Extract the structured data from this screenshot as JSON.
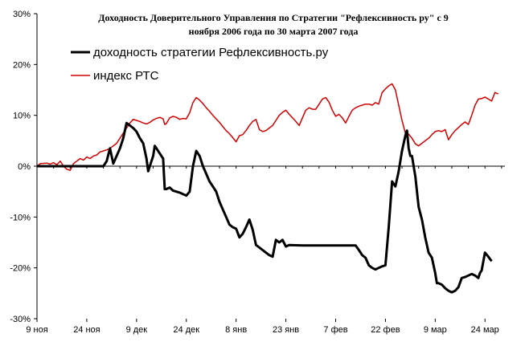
{
  "chart_data": {
    "type": "line",
    "title_line1": "Доходность Доверительного Управления по Стратегии \"Рефлексивность ру\" с 9",
    "title_line2": "ноября 2006 года по 30 марта 2007 года",
    "xlabel": "",
    "ylabel": "",
    "ylim": [
      -30,
      30
    ],
    "y_ticks": [
      30,
      20,
      10,
      0,
      -10,
      -20,
      -30
    ],
    "y_tick_labels": [
      "30%",
      "20%",
      "10%",
      "0%",
      "-10%",
      "-20%",
      "-30%"
    ],
    "x_ticks": [
      {
        "day": 0,
        "label": "9 ноя"
      },
      {
        "day": 15,
        "label": "24 ноя"
      },
      {
        "day": 30,
        "label": "9 дек"
      },
      {
        "day": 45,
        "label": "24 дек"
      },
      {
        "day": 60,
        "label": "8 янв"
      },
      {
        "day": 75,
        "label": "23 янв"
      },
      {
        "day": 90,
        "label": "7 фев"
      },
      {
        "day": 105,
        "label": "22 фев"
      },
      {
        "day": 120,
        "label": "9 мар"
      },
      {
        "day": 135,
        "label": "24 мар"
      }
    ],
    "x_max_day": 141,
    "grid": false,
    "legend_position": "top-left",
    "series": [
      {
        "name": "доходность стратегии Рефлексивность.ру",
        "color": "#000000",
        "points": [
          [
            0,
            0
          ],
          [
            20,
            0
          ],
          [
            21,
            1
          ],
          [
            22,
            3.5
          ],
          [
            23,
            0.5
          ],
          [
            25,
            3.5
          ],
          [
            26,
            5.5
          ],
          [
            27,
            8.5
          ],
          [
            28,
            8
          ],
          [
            29,
            7.5
          ],
          [
            30,
            6.8
          ],
          [
            31,
            5.5
          ],
          [
            32,
            4.5
          ],
          [
            33,
            1.5
          ],
          [
            33.5,
            -1
          ],
          [
            34,
            0
          ],
          [
            35,
            2
          ],
          [
            35.5,
            4
          ],
          [
            36,
            3.5
          ],
          [
            37,
            2.5
          ],
          [
            38,
            1.5
          ],
          [
            38.5,
            -4.5
          ],
          [
            39,
            -4.5
          ],
          [
            40,
            -4.2
          ],
          [
            41,
            -4.8
          ],
          [
            43,
            -5.2
          ],
          [
            44,
            -5.5
          ],
          [
            45,
            -5.8
          ],
          [
            46,
            -5
          ],
          [
            47,
            0
          ],
          [
            48,
            3
          ],
          [
            49,
            2
          ],
          [
            50,
            0
          ],
          [
            52,
            -3
          ],
          [
            53,
            -4
          ],
          [
            54,
            -5
          ],
          [
            55,
            -7
          ],
          [
            56,
            -8.5
          ],
          [
            57,
            -10
          ],
          [
            58,
            -11.5
          ],
          [
            59,
            -12
          ],
          [
            60,
            -12.3
          ],
          [
            61,
            -14
          ],
          [
            62,
            -13.3
          ],
          [
            63,
            -12
          ],
          [
            64,
            -10.5
          ],
          [
            65,
            -12.5
          ],
          [
            66,
            -15.5
          ],
          [
            67,
            -16
          ],
          [
            68,
            -16.5
          ],
          [
            69,
            -17
          ],
          [
            70,
            -17.5
          ],
          [
            71,
            -17.8
          ],
          [
            72,
            -14.5
          ],
          [
            73,
            -15
          ],
          [
            74,
            -14.5
          ],
          [
            75,
            -15.8
          ],
          [
            76,
            -15.5
          ],
          [
            80,
            -15.6
          ],
          [
            90,
            -15.6
          ],
          [
            96,
            -15.6
          ],
          [
            97,
            -16.5
          ],
          [
            98,
            -17.5
          ],
          [
            99,
            -18
          ],
          [
            100,
            -19.5
          ],
          [
            101,
            -20
          ],
          [
            102,
            -20.3
          ],
          [
            103,
            -20
          ],
          [
            104,
            -19.7
          ],
          [
            105,
            -19.5
          ],
          [
            106,
            -12
          ],
          [
            107,
            -3
          ],
          [
            108,
            -4
          ],
          [
            109,
            -1
          ],
          [
            110,
            3
          ],
          [
            111,
            6
          ],
          [
            111.5,
            7
          ],
          [
            112,
            3.5
          ],
          [
            112.5,
            2
          ],
          [
            113,
            2
          ],
          [
            114,
            -2
          ],
          [
            115,
            -8
          ],
          [
            116,
            -10.5
          ],
          [
            117,
            -14
          ],
          [
            118,
            -17
          ],
          [
            119,
            -18
          ],
          [
            120,
            -21
          ],
          [
            120.5,
            -23
          ],
          [
            121,
            -23
          ],
          [
            122,
            -23.3
          ],
          [
            123,
            -24
          ],
          [
            124,
            -24.5
          ],
          [
            125,
            -24.8
          ],
          [
            126,
            -24.5
          ],
          [
            127,
            -23.8
          ],
          [
            128,
            -22
          ],
          [
            129,
            -21.8
          ],
          [
            130,
            -21.5
          ],
          [
            131,
            -21.2
          ],
          [
            132,
            -21.5
          ],
          [
            133,
            -22
          ],
          [
            133.5,
            -21
          ],
          [
            134,
            -20.5
          ],
          [
            135,
            -17
          ],
          [
            136,
            -17.8
          ],
          [
            137,
            -18.7
          ]
        ]
      },
      {
        "name": "индекс РТС",
        "color": "#d40000",
        "points": [
          [
            0,
            0
          ],
          [
            1,
            0.5
          ],
          [
            3,
            0.6
          ],
          [
            4,
            0.4
          ],
          [
            5,
            0.7
          ],
          [
            6,
            0.3
          ],
          [
            7,
            1
          ],
          [
            8,
            0
          ],
          [
            9,
            -0.6
          ],
          [
            10,
            -0.8
          ],
          [
            11,
            0.5
          ],
          [
            12,
            1
          ],
          [
            13,
            1.5
          ],
          [
            14,
            1.2
          ],
          [
            15,
            1.8
          ],
          [
            16,
            1.5
          ],
          [
            17,
            2
          ],
          [
            18,
            2.2
          ],
          [
            19,
            2.8
          ],
          [
            20,
            3
          ],
          [
            21,
            3.2
          ],
          [
            22,
            3.5
          ],
          [
            23,
            4
          ],
          [
            24,
            4.5
          ],
          [
            25,
            5.5
          ],
          [
            26,
            6.5
          ],
          [
            27,
            7.5
          ],
          [
            28,
            8.5
          ],
          [
            29,
            9.2
          ],
          [
            30,
            9
          ],
          [
            31,
            8.8
          ],
          [
            32,
            8.5
          ],
          [
            33,
            8.3
          ],
          [
            34,
            8.6
          ],
          [
            35,
            9.1
          ],
          [
            36,
            9.4
          ],
          [
            37,
            9.6
          ],
          [
            38,
            9.3
          ],
          [
            38.5,
            8.2
          ],
          [
            39,
            8.4
          ],
          [
            40,
            9.5
          ],
          [
            41,
            9.8
          ],
          [
            42,
            9.6
          ],
          [
            43,
            9.2
          ],
          [
            44,
            9.4
          ],
          [
            45,
            9.3
          ],
          [
            46,
            10.5
          ],
          [
            47,
            12.5
          ],
          [
            48,
            13.5
          ],
          [
            49,
            13
          ],
          [
            50,
            12.3
          ],
          [
            51,
            11.5
          ],
          [
            52,
            10.8
          ],
          [
            53,
            10
          ],
          [
            54,
            9.3
          ],
          [
            55,
            8.6
          ],
          [
            56,
            7.8
          ],
          [
            57,
            7
          ],
          [
            58,
            6.4
          ],
          [
            59,
            5.6
          ],
          [
            60,
            4.8
          ],
          [
            61,
            6
          ],
          [
            62,
            6.2
          ],
          [
            63,
            7
          ],
          [
            64,
            8
          ],
          [
            65,
            8.8
          ],
          [
            66,
            9.2
          ],
          [
            67,
            7.2
          ],
          [
            68,
            6.8
          ],
          [
            69,
            7
          ],
          [
            70,
            7.5
          ],
          [
            71,
            8
          ],
          [
            72,
            9
          ],
          [
            73,
            10
          ],
          [
            74,
            10.6
          ],
          [
            75,
            11
          ],
          [
            76,
            10.2
          ],
          [
            77,
            9.5
          ],
          [
            78,
            8.8
          ],
          [
            79,
            8
          ],
          [
            80,
            9.5
          ],
          [
            81,
            11
          ],
          [
            82,
            11.5
          ],
          [
            83,
            11.2
          ],
          [
            84,
            11.2
          ],
          [
            85,
            12.2
          ],
          [
            86,
            13.2
          ],
          [
            87,
            13.5
          ],
          [
            88,
            12.6
          ],
          [
            89,
            11
          ],
          [
            90,
            9.8
          ],
          [
            91,
            10.2
          ],
          [
            92,
            9.5
          ],
          [
            93,
            8.5
          ],
          [
            94,
            9.8
          ],
          [
            95,
            11
          ],
          [
            96,
            11.5
          ],
          [
            97,
            11.8
          ],
          [
            98,
            12
          ],
          [
            99,
            12.2
          ],
          [
            100,
            12.2
          ],
          [
            101,
            12
          ],
          [
            102,
            12.5
          ],
          [
            103,
            12.2
          ],
          [
            104,
            14.5
          ],
          [
            105,
            15.2
          ],
          [
            106,
            15.8
          ],
          [
            107,
            16.2
          ],
          [
            108,
            15
          ],
          [
            109,
            12
          ],
          [
            110,
            9
          ],
          [
            111,
            6.5
          ],
          [
            112,
            6.3
          ],
          [
            113,
            5.5
          ],
          [
            114,
            4.4
          ],
          [
            115,
            4
          ],
          [
            116,
            4.5
          ],
          [
            117,
            5
          ],
          [
            118,
            5.5
          ],
          [
            119,
            6.2
          ],
          [
            120,
            6.8
          ],
          [
            121,
            7
          ],
          [
            122,
            6.8
          ],
          [
            123,
            7.2
          ],
          [
            124,
            5.2
          ],
          [
            125,
            6.2
          ],
          [
            126,
            7
          ],
          [
            127,
            7.6
          ],
          [
            128,
            8.2
          ],
          [
            129,
            8.7
          ],
          [
            130,
            8.2
          ],
          [
            131,
            10
          ],
          [
            132,
            12
          ],
          [
            133,
            13.2
          ],
          [
            134,
            13.3
          ],
          [
            135,
            13.6
          ],
          [
            136,
            13.2
          ],
          [
            137,
            12.8
          ],
          [
            138,
            14.5
          ],
          [
            139,
            14.2
          ]
        ]
      }
    ]
  }
}
